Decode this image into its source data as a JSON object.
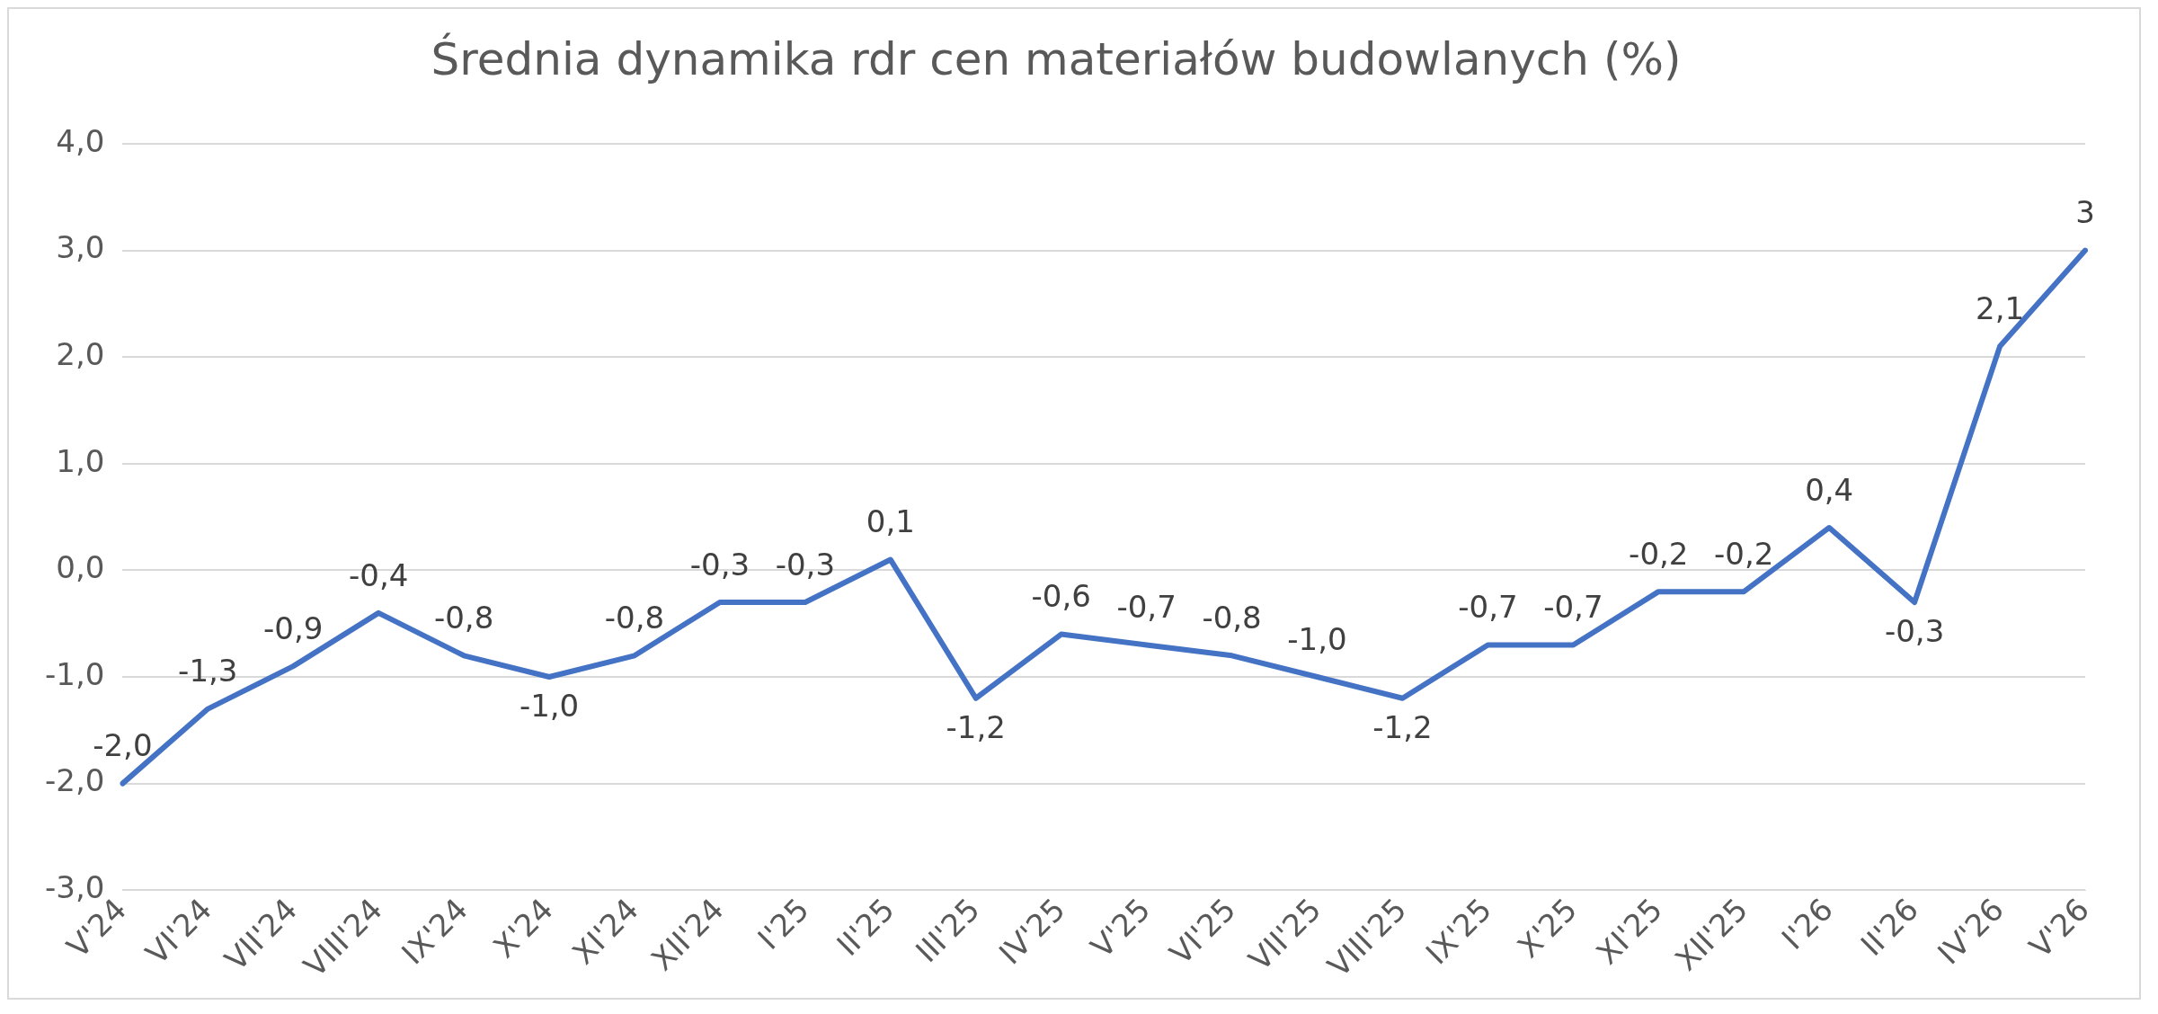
{
  "chart_data": {
    "type": "line",
    "title": "Średnia dynamika rdr cen materiałów budowlanych (%)",
    "categories": [
      "V'24",
      "VI'24",
      "VII'24",
      "VIII'24",
      "IX'24",
      "X'24",
      "XI'24",
      "XII'24",
      "I'25",
      "II'25",
      "III'25",
      "IV'25",
      "V'25",
      "VI'25",
      "VII'25",
      "VIII'25",
      "IX'25",
      "X'25",
      "XI'25",
      "XII'25",
      "I'26",
      "II'26",
      "IV'26",
      "V'26"
    ],
    "series": [
      {
        "color": "#4472c4",
        "values": [
          -2.0,
          -1.3,
          -0.9,
          -0.4,
          -0.8,
          -1.0,
          -0.8,
          -0.3,
          -0.3,
          0.1,
          -1.2,
          -0.6,
          -0.7,
          -0.8,
          -1.0,
          -1.2,
          -0.7,
          -0.7,
          -0.2,
          -0.2,
          0.4,
          -0.3,
          2.1,
          3
        ],
        "value_labels": [
          "-2,0",
          "-1,3",
          "-0,9",
          "-0,4",
          "-0,8",
          "-1,0",
          "-0,8",
          "-0,3",
          "-0,3",
          "0,1",
          "-1,2",
          "-0,6",
          "-0,7",
          "-0,8",
          "-1,0",
          "-1,2",
          "-0,7",
          "-0,7",
          "-0,2",
          "-0,2",
          "0,4",
          "-0,3",
          "2,1",
          "3"
        ]
      }
    ],
    "ylim": [
      -3,
      4
    ],
    "yticks": [
      {
        "value": -3,
        "label": "-3,0"
      },
      {
        "value": -2,
        "label": "-2,0"
      },
      {
        "value": -1,
        "label": "-1,0"
      },
      {
        "value": 0,
        "label": "0,0"
      },
      {
        "value": 1,
        "label": "1,0"
      },
      {
        "value": 2,
        "label": "2,0"
      },
      {
        "value": 3,
        "label": "3,0"
      },
      {
        "value": 4,
        "label": "4,0"
      }
    ],
    "grid": "y",
    "legend": false,
    "marker": "none",
    "line_style": "solid"
  }
}
